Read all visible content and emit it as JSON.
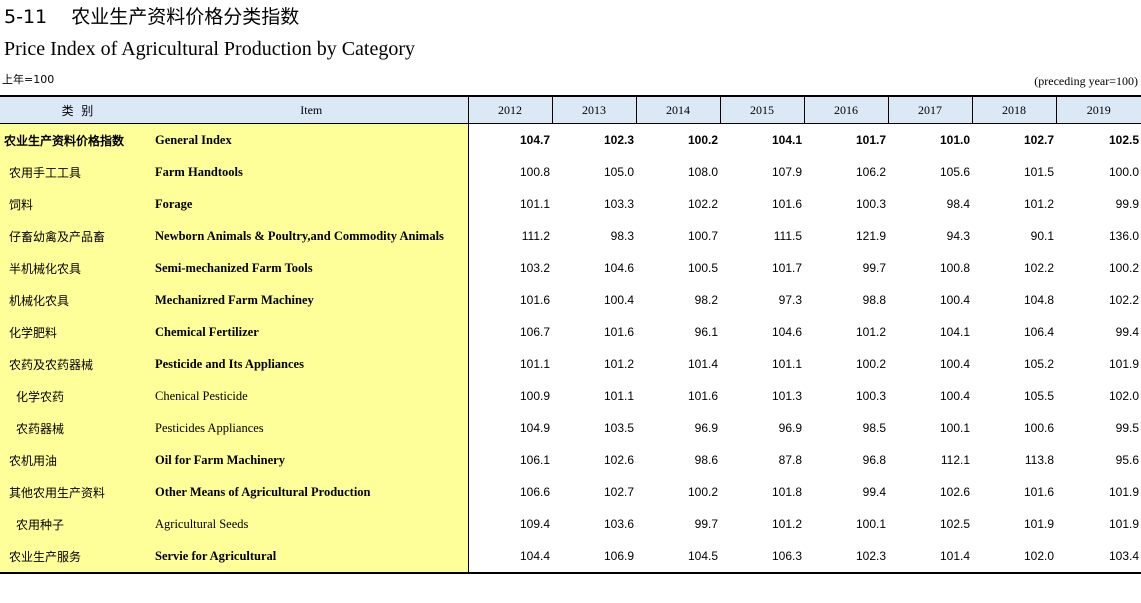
{
  "title": {
    "code": "5-11",
    "cn": "农业生产资料价格分类指数",
    "en": "Price Index of Agricultural Production by Category"
  },
  "unit": {
    "left": "上年=100",
    "right": "(preceding year=100)"
  },
  "table": {
    "header": {
      "category": "类  别",
      "item": "Item",
      "years": [
        "2012",
        "2013",
        "2014",
        "2015",
        "2016",
        "2017",
        "2018",
        "2019"
      ]
    },
    "rows": [
      {
        "cn": "农业生产资料价格指数",
        "en": "General Index",
        "level": "total",
        "values": [
          "104.7",
          "102.3",
          "100.2",
          "104.1",
          "101.7",
          "101.0",
          "102.7",
          "102.5"
        ]
      },
      {
        "cn": "农用手工工具",
        "en": "Farm Handtools",
        "level": "main",
        "values": [
          "100.8",
          "105.0",
          "108.0",
          "107.9",
          "106.2",
          "105.6",
          "101.5",
          "100.0"
        ]
      },
      {
        "cn": "饲料",
        "en": "Forage",
        "level": "main",
        "values": [
          "101.1",
          "103.3",
          "102.2",
          "101.6",
          "100.3",
          "98.4",
          "101.2",
          "99.9"
        ]
      },
      {
        "cn": "仔畜幼禽及产品畜",
        "en": "Newborn Animals & Poultry,and Commodity Animals",
        "level": "main",
        "values": [
          "111.2",
          "98.3",
          "100.7",
          "111.5",
          "121.9",
          "94.3",
          "90.1",
          "136.0"
        ]
      },
      {
        "cn": "半机械化农具",
        "en": "Semi-mechanized Farm Tools",
        "level": "main",
        "values": [
          "103.2",
          "104.6",
          "100.5",
          "101.7",
          "99.7",
          "100.8",
          "102.2",
          "100.2"
        ]
      },
      {
        "cn": "机械化农具",
        "en": "Mechanizred Farm Machiney",
        "level": "main",
        "values": [
          "101.6",
          "100.4",
          "98.2",
          "97.3",
          "98.8",
          "100.4",
          "104.8",
          "102.2"
        ]
      },
      {
        "cn": "化学肥料",
        "en": "Chemical Fertilizer",
        "level": "main",
        "values": [
          "106.7",
          "101.6",
          "96.1",
          "104.6",
          "101.2",
          "104.1",
          "106.4",
          "99.4"
        ]
      },
      {
        "cn": "农药及农药器械",
        "en": "Pesticide and Its Appliances",
        "level": "main",
        "values": [
          "101.1",
          "101.2",
          "101.4",
          "101.1",
          "100.2",
          "100.4",
          "105.2",
          "101.9"
        ]
      },
      {
        "cn": "化学农药",
        "en": "Chenical Pesticide",
        "level": "sub",
        "values": [
          "100.9",
          "101.1",
          "101.6",
          "101.3",
          "100.3",
          "100.4",
          "105.5",
          "102.0"
        ]
      },
      {
        "cn": "农药器械",
        "en": "Pesticides Appliances",
        "level": "sub",
        "values": [
          "104.9",
          "103.5",
          "96.9",
          "96.9",
          "98.5",
          "100.1",
          "100.6",
          "99.5"
        ]
      },
      {
        "cn": "农机用油",
        "en": "Oil for Farm Machinery",
        "level": "main",
        "values": [
          "106.1",
          "102.6",
          "98.6",
          "87.8",
          "96.8",
          "112.1",
          "113.8",
          "95.6"
        ]
      },
      {
        "cn": "其他农用生产资料",
        "en": "Other Means of Agricultural Production",
        "level": "main",
        "values": [
          "106.6",
          "102.7",
          "100.2",
          "101.8",
          "99.4",
          "102.6",
          "101.6",
          "101.9"
        ]
      },
      {
        "cn": "农用种子",
        "en": "Agricultural Seeds",
        "level": "sub",
        "values": [
          "109.4",
          "103.6",
          "99.7",
          "101.2",
          "100.1",
          "102.5",
          "101.9",
          "101.9"
        ]
      },
      {
        "cn": "农业生产服务",
        "en": "Servie for Agricultural",
        "level": "main",
        "values": [
          "104.4",
          "106.9",
          "104.5",
          "106.3",
          "102.3",
          "101.4",
          "102.0",
          "103.4"
        ]
      }
    ]
  },
  "colors": {
    "header_bg": "#dbe9f6",
    "label_bg": "#ffff99",
    "rule": "#000000"
  }
}
